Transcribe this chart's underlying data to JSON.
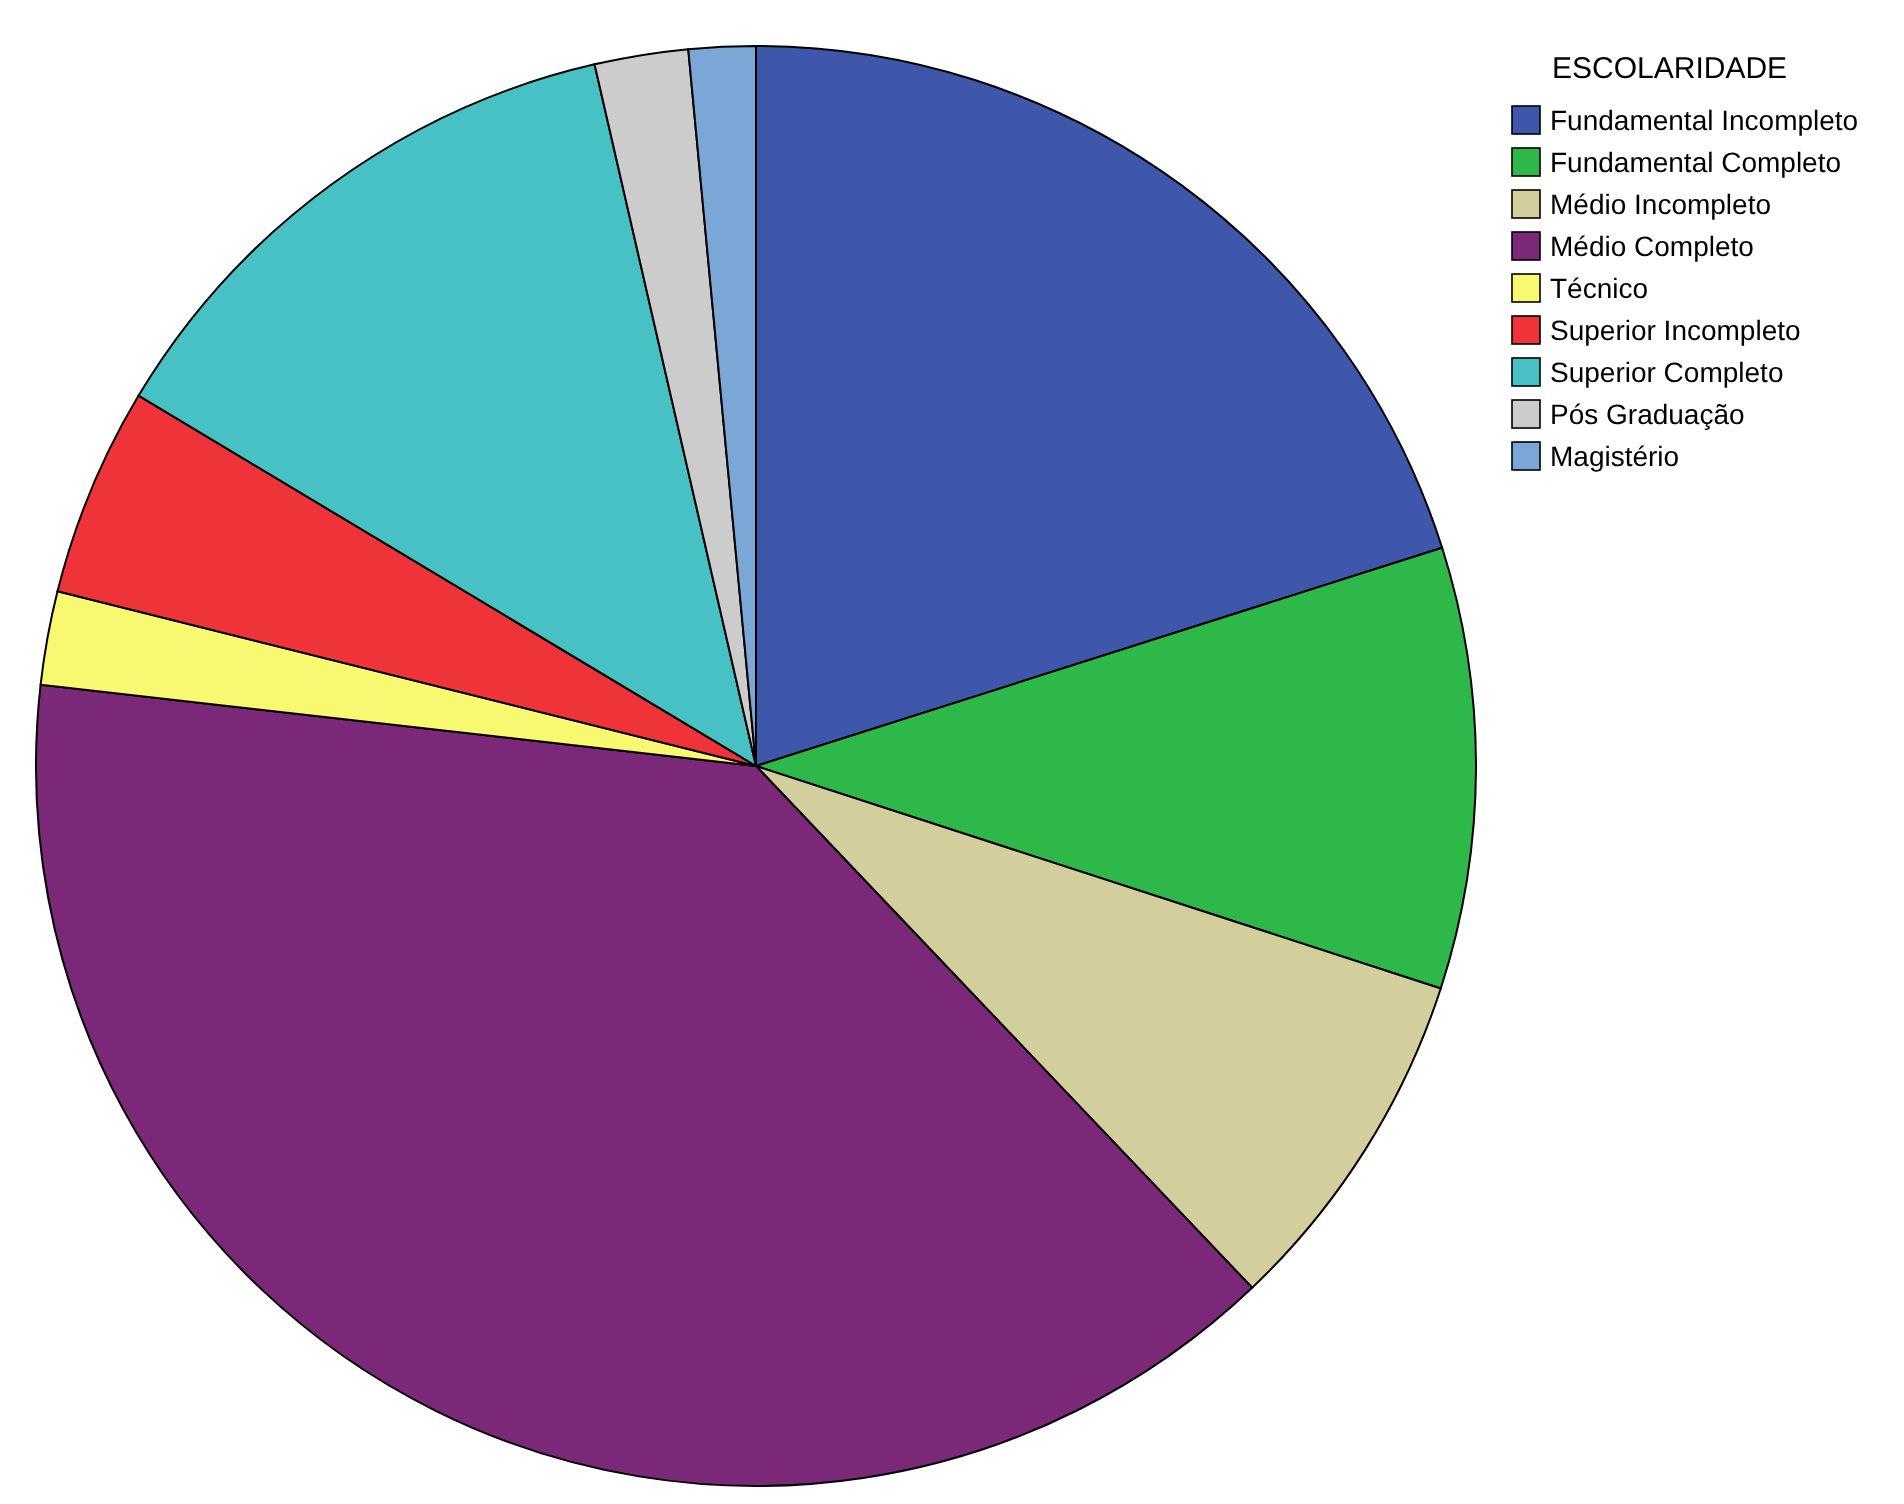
{
  "chart_data": {
    "type": "pie",
    "legend_title": "ESCOLARIDADE",
    "legend": "top right",
    "categories": [
      "Fundamental Incompleto",
      "Fundamental Completo",
      "Médio Incompleto",
      "Médio Completo",
      "Técnico",
      "Superior Incompleto",
      "Superior Completo",
      "Pós Graduação",
      "Magistério"
    ],
    "values": [
      20.1,
      9.9,
      7.9,
      38.9,
      2.1,
      4.7,
      12.8,
      2.1,
      1.5
    ],
    "colors": [
      "#3f57ab",
      "#2fb84a",
      "#d3cf9c",
      "#7b2879",
      "#f9f871",
      "#ef3439",
      "#48c1c5",
      "#cccccc",
      "#7ba7d7"
    ]
  }
}
